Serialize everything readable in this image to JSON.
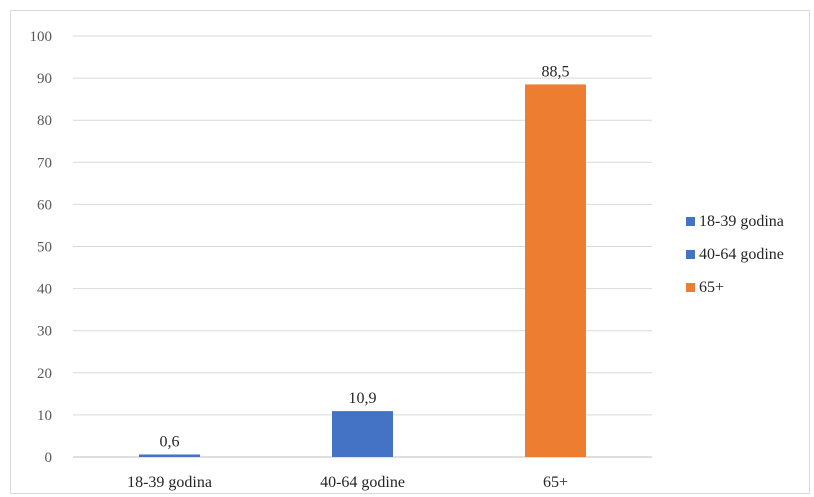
{
  "chart_data": {
    "type": "bar",
    "categories": [
      "18-39 godina",
      "40-64 godine",
      "65+"
    ],
    "values": [
      0.6,
      10.9,
      88.5
    ],
    "data_labels": [
      "0,6",
      "10,9",
      "88,5"
    ],
    "colors": [
      "#4472c4",
      "#4472c4",
      "#ed7d31"
    ],
    "ylim": [
      0,
      100
    ],
    "yticks": [
      0,
      10,
      20,
      30,
      40,
      50,
      60,
      70,
      80,
      90,
      100
    ],
    "grid": true,
    "legend_position": "right",
    "legend": [
      {
        "label": "18-39 godina",
        "color": "#4472c4"
      },
      {
        "label": "40-64 godine",
        "color": "#4472c4"
      },
      {
        "label": "65+",
        "color": "#ed7d31"
      }
    ],
    "title": "",
    "xlabel": "",
    "ylabel": ""
  }
}
